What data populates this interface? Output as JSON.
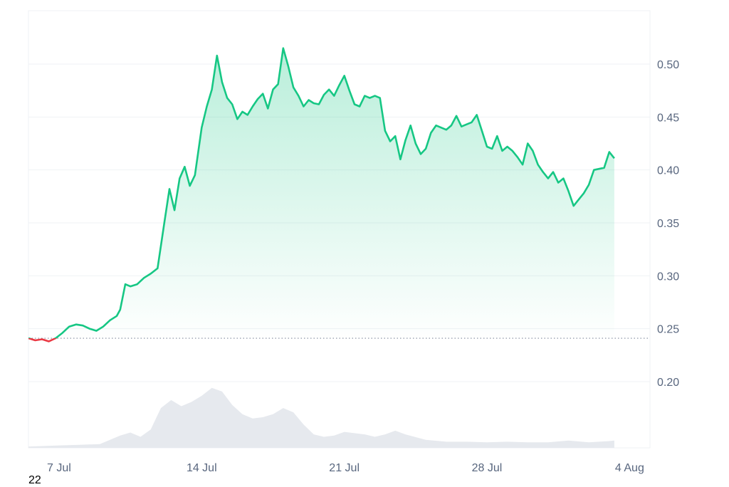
{
  "corner_label": "22",
  "colors": {
    "up": "#16c784",
    "down": "#ea3943",
    "area_top": "#16c784",
    "volume": "#e6e9ee",
    "grid": "#eff2f5",
    "baseline": "#808a9d",
    "tick": "#58667e"
  },
  "chart_data": {
    "type": "line",
    "title": "",
    "xlabel": "",
    "ylabel": "",
    "x_ticks": [
      "7 Jul",
      "14 Jul",
      "21 Jul",
      "28 Jul",
      "4 Aug"
    ],
    "y_ticks": [
      "0.20",
      "0.25",
      "0.30",
      "0.35",
      "0.40",
      "0.45",
      "0.50"
    ],
    "y_range": [
      0.195,
      0.545
    ],
    "x_range_days": [
      "2024-07-05T12:00",
      "2024-08-05T00:00"
    ],
    "baseline": 0.241,
    "grid": "horizontal",
    "series": [
      {
        "price_points": [
          [
            "2024-07-05T12:00",
            0.241
          ],
          [
            "2024-07-05T20:00",
            0.239
          ],
          [
            "2024-07-06T04:00",
            0.24
          ],
          [
            "2024-07-06T12:00",
            0.238
          ],
          [
            "2024-07-06T20:00",
            0.241
          ],
          [
            "2024-07-07T04:00",
            0.246
          ],
          [
            "2024-07-07T12:00",
            0.252
          ],
          [
            "2024-07-07T20:00",
            0.254
          ],
          [
            "2024-07-08T04:00",
            0.253
          ],
          [
            "2024-07-08T12:00",
            0.25
          ],
          [
            "2024-07-08T20:00",
            0.248
          ],
          [
            "2024-07-09T04:00",
            0.252
          ],
          [
            "2024-07-09T12:00",
            0.258
          ],
          [
            "2024-07-09T20:00",
            0.262
          ],
          [
            "2024-07-10T00:00",
            0.268
          ],
          [
            "2024-07-10T06:00",
            0.292
          ],
          [
            "2024-07-10T12:00",
            0.29
          ],
          [
            "2024-07-10T20:00",
            0.292
          ],
          [
            "2024-07-11T04:00",
            0.298
          ],
          [
            "2024-07-11T12:00",
            0.302
          ],
          [
            "2024-07-11T20:00",
            0.307
          ],
          [
            "2024-07-12T04:00",
            0.35
          ],
          [
            "2024-07-12T10:00",
            0.382
          ],
          [
            "2024-07-12T16:00",
            0.362
          ],
          [
            "2024-07-12T22:00",
            0.392
          ],
          [
            "2024-07-13T04:00",
            0.403
          ],
          [
            "2024-07-13T10:00",
            0.385
          ],
          [
            "2024-07-13T16:00",
            0.395
          ],
          [
            "2024-07-14T00:00",
            0.44
          ],
          [
            "2024-07-14T06:00",
            0.46
          ],
          [
            "2024-07-14T12:00",
            0.476
          ],
          [
            "2024-07-14T18:00",
            0.508
          ],
          [
            "2024-07-15T00:00",
            0.483
          ],
          [
            "2024-07-15T06:00",
            0.468
          ],
          [
            "2024-07-15T12:00",
            0.462
          ],
          [
            "2024-07-15T18:00",
            0.448
          ],
          [
            "2024-07-16T00:00",
            0.455
          ],
          [
            "2024-07-16T06:00",
            0.452
          ],
          [
            "2024-07-16T12:00",
            0.46
          ],
          [
            "2024-07-16T18:00",
            0.467
          ],
          [
            "2024-07-17T00:00",
            0.472
          ],
          [
            "2024-07-17T06:00",
            0.458
          ],
          [
            "2024-07-17T12:00",
            0.476
          ],
          [
            "2024-07-17T18:00",
            0.481
          ],
          [
            "2024-07-18T00:00",
            0.515
          ],
          [
            "2024-07-18T06:00",
            0.498
          ],
          [
            "2024-07-18T12:00",
            0.478
          ],
          [
            "2024-07-18T18:00",
            0.47
          ],
          [
            "2024-07-19T00:00",
            0.46
          ],
          [
            "2024-07-19T06:00",
            0.466
          ],
          [
            "2024-07-19T12:00",
            0.463
          ],
          [
            "2024-07-19T18:00",
            0.462
          ],
          [
            "2024-07-20T00:00",
            0.471
          ],
          [
            "2024-07-20T06:00",
            0.476
          ],
          [
            "2024-07-20T12:00",
            0.47
          ],
          [
            "2024-07-20T18:00",
            0.48
          ],
          [
            "2024-07-21T00:00",
            0.489
          ],
          [
            "2024-07-21T06:00",
            0.475
          ],
          [
            "2024-07-21T12:00",
            0.462
          ],
          [
            "2024-07-21T18:00",
            0.46
          ],
          [
            "2024-07-22T00:00",
            0.47
          ],
          [
            "2024-07-22T06:00",
            0.468
          ],
          [
            "2024-07-22T12:00",
            0.47
          ],
          [
            "2024-07-22T18:00",
            0.468
          ],
          [
            "2024-07-23T00:00",
            0.437
          ],
          [
            "2024-07-23T06:00",
            0.427
          ],
          [
            "2024-07-23T12:00",
            0.432
          ],
          [
            "2024-07-23T18:00",
            0.41
          ],
          [
            "2024-07-24T00:00",
            0.428
          ],
          [
            "2024-07-24T06:00",
            0.442
          ],
          [
            "2024-07-24T12:00",
            0.425
          ],
          [
            "2024-07-24T18:00",
            0.415
          ],
          [
            "2024-07-25T00:00",
            0.42
          ],
          [
            "2024-07-25T06:00",
            0.435
          ],
          [
            "2024-07-25T12:00",
            0.442
          ],
          [
            "2024-07-25T18:00",
            0.44
          ],
          [
            "2024-07-26T00:00",
            0.438
          ],
          [
            "2024-07-26T06:00",
            0.442
          ],
          [
            "2024-07-26T12:00",
            0.451
          ],
          [
            "2024-07-26T18:00",
            0.441
          ],
          [
            "2024-07-27T00:00",
            0.443
          ],
          [
            "2024-07-27T06:00",
            0.445
          ],
          [
            "2024-07-27T12:00",
            0.452
          ],
          [
            "2024-07-27T18:00",
            0.437
          ],
          [
            "2024-07-28T00:00",
            0.422
          ],
          [
            "2024-07-28T06:00",
            0.42
          ],
          [
            "2024-07-28T12:00",
            0.432
          ],
          [
            "2024-07-28T18:00",
            0.418
          ],
          [
            "2024-07-29T00:00",
            0.422
          ],
          [
            "2024-07-29T06:00",
            0.418
          ],
          [
            "2024-07-29T12:00",
            0.412
          ],
          [
            "2024-07-29T18:00",
            0.405
          ],
          [
            "2024-07-30T00:00",
            0.425
          ],
          [
            "2024-07-30T06:00",
            0.418
          ],
          [
            "2024-07-30T12:00",
            0.405
          ],
          [
            "2024-07-30T18:00",
            0.398
          ],
          [
            "2024-07-31T00:00",
            0.392
          ],
          [
            "2024-07-31T06:00",
            0.398
          ],
          [
            "2024-07-31T12:00",
            0.388
          ],
          [
            "2024-07-31T18:00",
            0.392
          ],
          [
            "2024-08-01T00:00",
            0.38
          ],
          [
            "2024-08-01T06:00",
            0.366
          ],
          [
            "2024-08-01T12:00",
            0.372
          ],
          [
            "2024-08-01T18:00",
            0.378
          ],
          [
            "2024-08-02T00:00",
            0.386
          ],
          [
            "2024-08-02T06:00",
            0.4
          ],
          [
            "2024-08-02T12:00",
            0.401
          ],
          [
            "2024-08-02T18:00",
            0.402
          ],
          [
            "2024-08-03T00:00",
            0.417
          ],
          [
            "2024-08-03T06:00",
            0.411
          ]
        ]
      },
      {
        "volume_relative": [
          [
            "2024-07-05T12:00",
            0.02
          ],
          [
            "2024-07-07T00:00",
            0.04
          ],
          [
            "2024-07-08T00:00",
            0.05
          ],
          [
            "2024-07-09T00:00",
            0.06
          ],
          [
            "2024-07-10T00:00",
            0.2
          ],
          [
            "2024-07-10T12:00",
            0.25
          ],
          [
            "2024-07-11T00:00",
            0.18
          ],
          [
            "2024-07-11T12:00",
            0.3
          ],
          [
            "2024-07-12T00:00",
            0.65
          ],
          [
            "2024-07-12T12:00",
            0.78
          ],
          [
            "2024-07-13T00:00",
            0.68
          ],
          [
            "2024-07-13T12:00",
            0.75
          ],
          [
            "2024-07-14T00:00",
            0.85
          ],
          [
            "2024-07-14T12:00",
            0.98
          ],
          [
            "2024-07-15T00:00",
            0.92
          ],
          [
            "2024-07-15T12:00",
            0.7
          ],
          [
            "2024-07-16T00:00",
            0.55
          ],
          [
            "2024-07-16T12:00",
            0.48
          ],
          [
            "2024-07-17T00:00",
            0.5
          ],
          [
            "2024-07-17T12:00",
            0.55
          ],
          [
            "2024-07-18T00:00",
            0.65
          ],
          [
            "2024-07-18T12:00",
            0.58
          ],
          [
            "2024-07-19T00:00",
            0.38
          ],
          [
            "2024-07-19T12:00",
            0.22
          ],
          [
            "2024-07-20T00:00",
            0.18
          ],
          [
            "2024-07-20T12:00",
            0.2
          ],
          [
            "2024-07-21T00:00",
            0.26
          ],
          [
            "2024-07-21T12:00",
            0.24
          ],
          [
            "2024-07-22T00:00",
            0.22
          ],
          [
            "2024-07-22T12:00",
            0.18
          ],
          [
            "2024-07-23T00:00",
            0.22
          ],
          [
            "2024-07-23T12:00",
            0.28
          ],
          [
            "2024-07-24T00:00",
            0.22
          ],
          [
            "2024-07-25T00:00",
            0.13
          ],
          [
            "2024-07-26T00:00",
            0.1
          ],
          [
            "2024-07-27T00:00",
            0.1
          ],
          [
            "2024-07-28T00:00",
            0.09
          ],
          [
            "2024-07-29T00:00",
            0.1
          ],
          [
            "2024-07-30T00:00",
            0.09
          ],
          [
            "2024-07-31T00:00",
            0.09
          ],
          [
            "2024-08-01T00:00",
            0.12
          ],
          [
            "2024-08-02T00:00",
            0.09
          ],
          [
            "2024-08-03T00:00",
            0.11
          ],
          [
            "2024-08-03T06:00",
            0.12
          ]
        ]
      }
    ]
  }
}
